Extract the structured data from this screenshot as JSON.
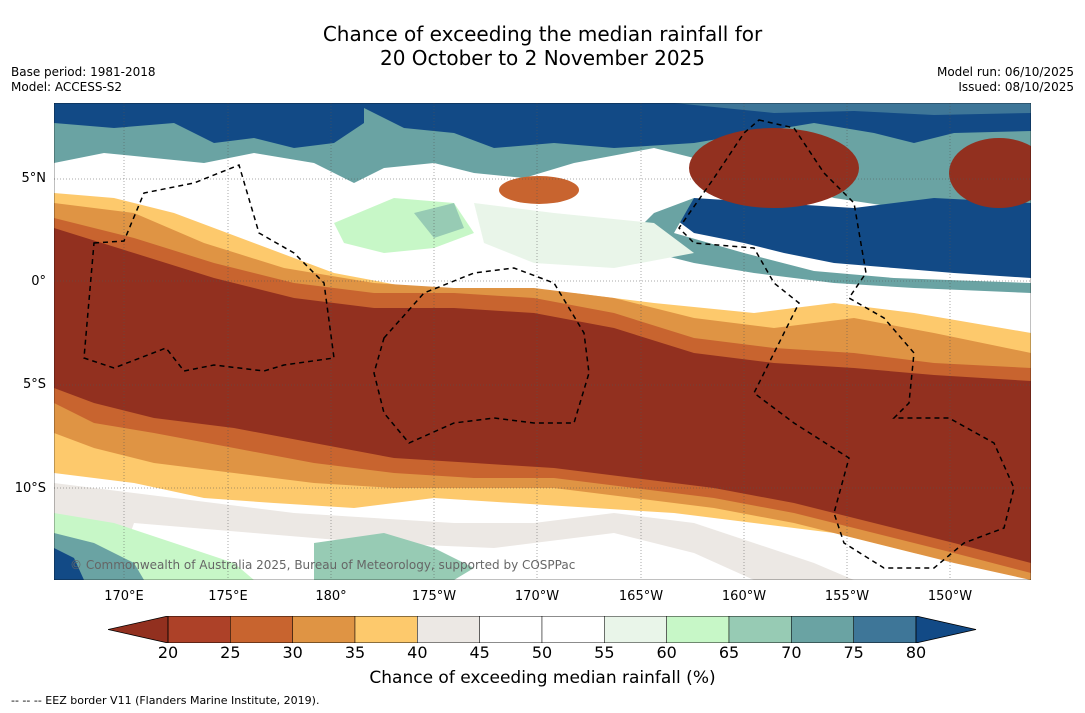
{
  "title": {
    "line1": "Chance of exceeding the median rainfall for",
    "line2": "20 October to 2 November 2025"
  },
  "meta": {
    "base_period": "Base period: 1981-2018",
    "model": "Model: ACCESS-S2",
    "model_run": "Model run: 06/10/2025",
    "issued": "Issued: 08/10/2025"
  },
  "map": {
    "lat_labels": [
      "5°N",
      "0°",
      "5°S",
      "10°S"
    ],
    "lon_labels": [
      "170°E",
      "175°E",
      "180°",
      "175°W",
      "170°W",
      "165°W",
      "160°W",
      "155°W",
      "150°W"
    ],
    "copyright": "© Commonwealth of Australia 2025, Bureau of Meteorology, supported by COSPPac"
  },
  "colorbar": {
    "ticks": [
      "20",
      "25",
      "30",
      "35",
      "40",
      "45",
      "50",
      "55",
      "60",
      "65",
      "70",
      "75",
      "80"
    ],
    "colors": [
      "#92301f",
      "#ad4128",
      "#c8642f",
      "#df9444",
      "#fdc96c",
      "#ece8e4",
      "#ffffff",
      "#ffffff",
      "#e9f5e9",
      "#c7f7c7",
      "#97cbb4",
      "#6aa3a3",
      "#3e7698",
      "#124a86"
    ],
    "label": "Chance of exceeding median rainfall (%)"
  },
  "footer": {
    "eez": "-- -- -- EEZ border V11 (Flanders Marine Institute, 2019)."
  }
}
